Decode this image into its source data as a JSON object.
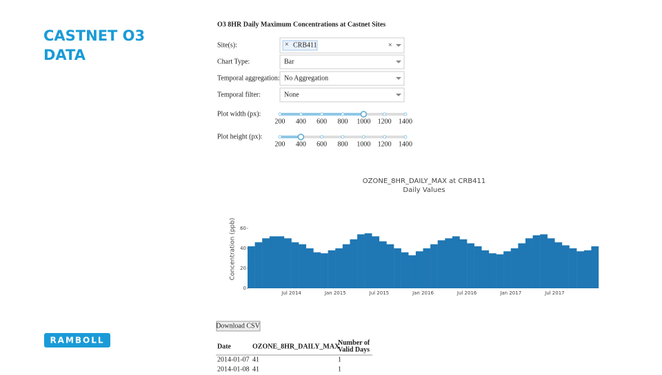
{
  "slide_title": "CASTNET O3 DATA",
  "logo": "RAMBOLL",
  "app": {
    "heading": "O3 8HR Daily Maximum Concentrations at Castnet Sites",
    "site_label": "Site(s):",
    "site_value": "CRB411",
    "chart_type_label": "Chart Type:",
    "chart_type_value": "Bar",
    "aggregation_label": "Temporal aggregation:",
    "aggregation_value": "No Aggregation",
    "filter_label": "Temporal filter:",
    "filter_value": "None",
    "width_label": "Plot width (px):",
    "width_value": 1000,
    "height_label": "Plot height (px):",
    "height_value": 400,
    "slider_ticks": [
      200,
      400,
      600,
      800,
      1000,
      1200,
      1400
    ],
    "download_button": "Download CSV",
    "table": {
      "headers": [
        "Date",
        "OZONE_8HR_DAILY_MAX",
        "Number of Valid Days"
      ],
      "rows": [
        [
          "2014-01-07",
          "41",
          "1"
        ],
        [
          "2014-01-08",
          "41",
          "1"
        ]
      ]
    }
  },
  "chart_data": {
    "type": "bar",
    "title": "OZONE_8HR_DAILY_MAX at CRB411",
    "subtitle": "Daily Values",
    "y_label": "Concentration (ppb)",
    "color": "#1f77b4",
    "x": [
      null,
      null,
      null,
      null,
      null,
      null,
      "Jul 2014",
      null,
      null,
      null,
      null,
      null,
      "Jan 2015",
      null,
      null,
      null,
      null,
      null,
      "Jul 2015",
      null,
      null,
      null,
      null,
      null,
      "Jan 2016",
      null,
      null,
      null,
      null,
      null,
      "Jul 2016",
      null,
      null,
      null,
      null,
      null,
      "Jan 2017",
      null,
      null,
      null,
      null,
      null,
      "Jul 2017",
      null,
      null,
      null,
      null,
      null
    ],
    "values": [
      42,
      46,
      50,
      52,
      52,
      50,
      46,
      44,
      40,
      36,
      35,
      38,
      40,
      44,
      49,
      54,
      55,
      52,
      47,
      44,
      40,
      36,
      33,
      37,
      40,
      44,
      48,
      50,
      52,
      49,
      45,
      42,
      38,
      35,
      34,
      37,
      40,
      45,
      50,
      53,
      54,
      50,
      46,
      43,
      40,
      37,
      38,
      42
    ],
    "ylim": [
      0,
      75
    ],
    "yticks": [
      0,
      20,
      40,
      60
    ]
  }
}
